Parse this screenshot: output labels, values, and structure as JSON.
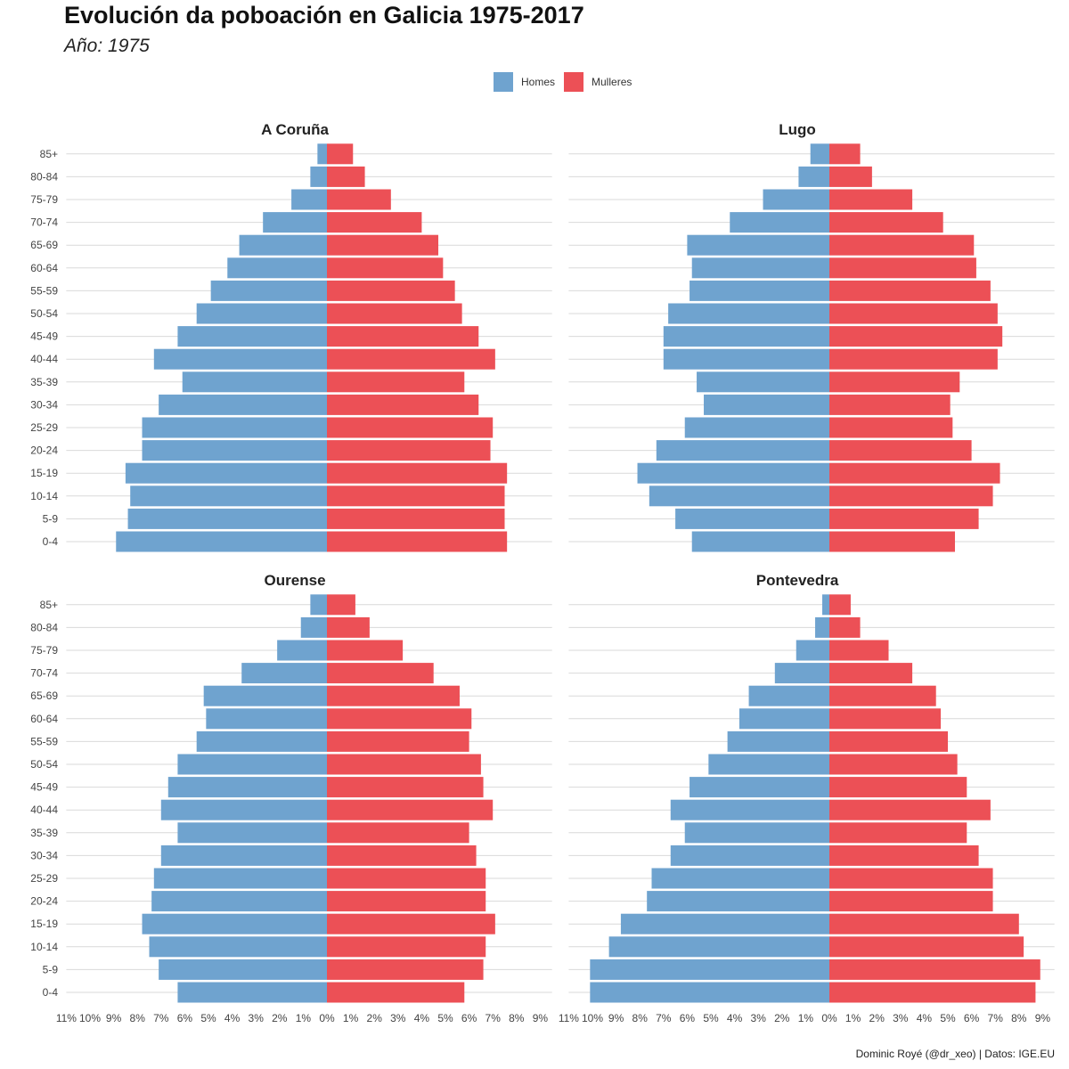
{
  "header": {
    "title": "Evolución da poboación en Galicia 1975-2017",
    "subtitle": "Año:  1975"
  },
  "legend": {
    "items": [
      {
        "label": "Homes",
        "color": "#6fa3cf"
      },
      {
        "label": "Mulleres",
        "color": "#ec5056"
      }
    ]
  },
  "caption": "Dominic Royé (@dr_xeo) | Datos: IGE.EU",
  "chart_data": {
    "type": "bar",
    "orientation": "horizontal",
    "diverging": true,
    "series_names": [
      "Homes",
      "Mulleres"
    ],
    "colors": {
      "Homes": "#6fa3cf",
      "Mulleres": "#ec5056"
    },
    "categories": [
      "0-4",
      "5-9",
      "10-14",
      "15-19",
      "20-24",
      "25-29",
      "30-34",
      "35-39",
      "40-44",
      "45-49",
      "50-54",
      "55-59",
      "60-64",
      "65-69",
      "70-74",
      "75-79",
      "80-84",
      "85+"
    ],
    "x_ticks": [
      "11%",
      "10%",
      "9%",
      "8%",
      "7%",
      "6%",
      "5%",
      "4%",
      "3%",
      "2%",
      "1%",
      "0%",
      "1%",
      "2%",
      "3%",
      "4%",
      "5%",
      "6%",
      "7%",
      "8%",
      "9%"
    ],
    "xlim": [
      -11,
      9.5
    ],
    "grid": true,
    "legend_position": "top",
    "panels": [
      {
        "name": "A Coruña",
        "homes": [
          8.9,
          8.4,
          8.3,
          8.5,
          7.8,
          7.8,
          7.1,
          6.1,
          7.3,
          6.3,
          5.5,
          4.9,
          4.2,
          3.7,
          2.7,
          1.5,
          0.7,
          0.4
        ],
        "mulleres": [
          7.6,
          7.5,
          7.5,
          7.6,
          6.9,
          7.0,
          6.4,
          5.8,
          7.1,
          6.4,
          5.7,
          5.4,
          4.9,
          4.7,
          4.0,
          2.7,
          1.6,
          1.1
        ]
      },
      {
        "name": "Lugo",
        "homes": [
          5.8,
          6.5,
          7.6,
          8.1,
          7.3,
          6.1,
          5.3,
          5.6,
          7.0,
          7.0,
          6.8,
          5.9,
          5.8,
          6.0,
          4.2,
          2.8,
          1.3,
          0.8
        ],
        "mulleres": [
          5.3,
          6.3,
          6.9,
          7.2,
          6.0,
          5.2,
          5.1,
          5.5,
          7.1,
          7.3,
          7.1,
          6.8,
          6.2,
          6.1,
          4.8,
          3.5,
          1.8,
          1.3
        ]
      },
      {
        "name": "Ourense",
        "homes": [
          6.3,
          7.1,
          7.5,
          7.8,
          7.4,
          7.3,
          7.0,
          6.3,
          7.0,
          6.7,
          6.3,
          5.5,
          5.1,
          5.2,
          3.6,
          2.1,
          1.1,
          0.7
        ],
        "mulleres": [
          5.8,
          6.6,
          6.7,
          7.1,
          6.7,
          6.7,
          6.3,
          6.0,
          7.0,
          6.6,
          6.5,
          6.0,
          6.1,
          5.6,
          4.5,
          3.2,
          1.8,
          1.2
        ]
      },
      {
        "name": "Pontevedra",
        "homes": [
          10.1,
          10.1,
          9.3,
          8.8,
          7.7,
          7.5,
          6.7,
          6.1,
          6.7,
          5.9,
          5.1,
          4.3,
          3.8,
          3.4,
          2.3,
          1.4,
          0.6,
          0.3
        ],
        "mulleres": [
          8.7,
          8.9,
          8.2,
          8.0,
          6.9,
          6.9,
          6.3,
          5.8,
          6.8,
          5.8,
          5.4,
          5.0,
          4.7,
          4.5,
          3.5,
          2.5,
          1.3,
          0.9
        ]
      }
    ]
  }
}
